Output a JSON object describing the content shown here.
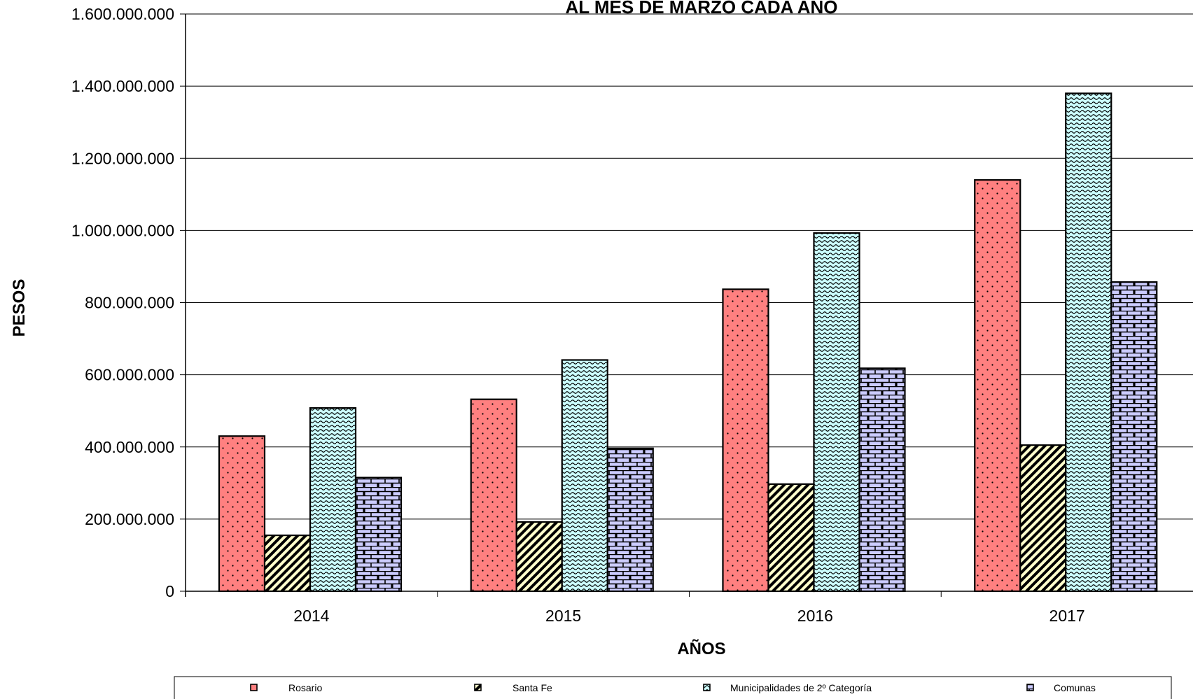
{
  "chart_data": {
    "type": "bar",
    "title": "AL MES DE MARZO CADA AÑO",
    "xlabel": "AÑOS",
    "ylabel": "PESOS",
    "categories": [
      "2014",
      "2015",
      "2016",
      "2017"
    ],
    "ylim": [
      0,
      1600000000
    ],
    "yticks": [
      0,
      200000000,
      400000000,
      600000000,
      800000000,
      1000000000,
      1200000000,
      1400000000,
      1600000000
    ],
    "ytick_labels": [
      "0",
      "200.000.000",
      "400.000.000",
      "600.000.000",
      "800.000.000",
      "1.000.000.000",
      "1.200.000.000",
      "1.400.000.000",
      "1.600.000.000"
    ],
    "grid": true,
    "legend_position": "bottom",
    "series": [
      {
        "name": "Rosario",
        "values": [
          430000000,
          532000000,
          837000000,
          1140000000
        ],
        "color": "#ff8080",
        "pattern": "dots"
      },
      {
        "name": "Santa Fe",
        "values": [
          155000000,
          192000000,
          297000000,
          405000000
        ],
        "color": "#ffffcc",
        "pattern": "diagonal-stripes"
      },
      {
        "name": "Municipalidades de 2º Categoría",
        "values": [
          508000000,
          641000000,
          993000000,
          1380000000
        ],
        "color": "#ccffff",
        "pattern": "wave"
      },
      {
        "name": "Comunas",
        "values": [
          315000000,
          396000000,
          618000000,
          857000000
        ],
        "color": "#ccccff",
        "pattern": "brick"
      }
    ]
  }
}
